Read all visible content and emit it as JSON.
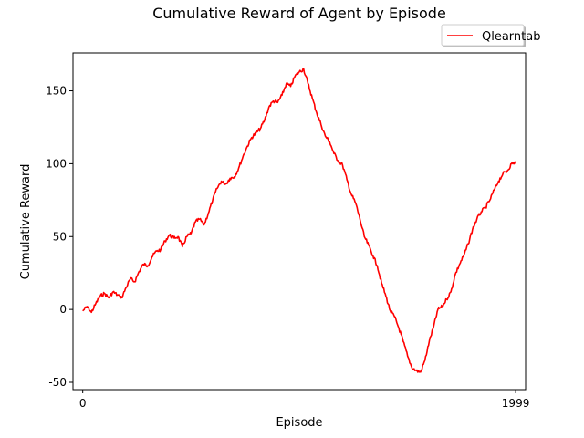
{
  "chart_data": {
    "type": "line",
    "title": "Cumulative Reward of Agent by Episode",
    "xlabel": "Episode",
    "ylabel": "Cumulative Reward",
    "xlim": [
      -45,
      2045
    ],
    "ylim": [
      -55,
      176
    ],
    "xticks": [
      0,
      1999
    ],
    "yticks": [
      -50,
      0,
      50,
      100,
      150
    ],
    "grid": false,
    "legend_position": "top-right",
    "colors": {
      "line": "#ff0000",
      "axes": "#000000"
    },
    "series": [
      {
        "name": "Qlearntab",
        "x": [
          0,
          20,
          40,
          60,
          80,
          100,
          120,
          140,
          160,
          180,
          200,
          220,
          240,
          260,
          280,
          300,
          320,
          340,
          360,
          380,
          400,
          420,
          440,
          460,
          480,
          500,
          520,
          540,
          560,
          580,
          600,
          620,
          640,
          660,
          680,
          700,
          720,
          740,
          760,
          780,
          800,
          820,
          840,
          860,
          880,
          900,
          920,
          940,
          960,
          980,
          1000,
          1020,
          1040,
          1060,
          1080,
          1100,
          1120,
          1140,
          1160,
          1180,
          1200,
          1220,
          1240,
          1260,
          1280,
          1300,
          1320,
          1340,
          1360,
          1380,
          1400,
          1420,
          1440,
          1460,
          1480,
          1500,
          1520,
          1540,
          1560,
          1580,
          1600,
          1620,
          1640,
          1660,
          1680,
          1700,
          1720,
          1740,
          1760,
          1780,
          1800,
          1820,
          1840,
          1860,
          1880,
          1900,
          1920,
          1940,
          1960,
          1980,
          1999
        ],
        "values": [
          -1,
          2,
          -2,
          4,
          9,
          11,
          8,
          12,
          10,
          8,
          15,
          21,
          19,
          26,
          31,
          30,
          36,
          40,
          41,
          47,
          51,
          49,
          50,
          43,
          50,
          52,
          60,
          62,
          58,
          66,
          75,
          83,
          88,
          86,
          90,
          91,
          97,
          105,
          112,
          118,
          121,
          124,
          130,
          139,
          143,
          142,
          147,
          155,
          153,
          160,
          163,
          165,
          155,
          145,
          135,
          127,
          119,
          115,
          107,
          102,
          99,
          89,
          79,
          73,
          62,
          50,
          44,
          37,
          30,
          18,
          9,
          -1,
          -5,
          -13,
          -22,
          -32,
          -40,
          -42,
          -43,
          -35,
          -22,
          -12,
          0,
          2,
          7,
          12,
          24,
          31,
          37,
          45,
          55,
          62,
          67,
          70,
          75,
          82,
          88,
          93,
          95,
          100,
          101
        ]
      }
    ]
  }
}
